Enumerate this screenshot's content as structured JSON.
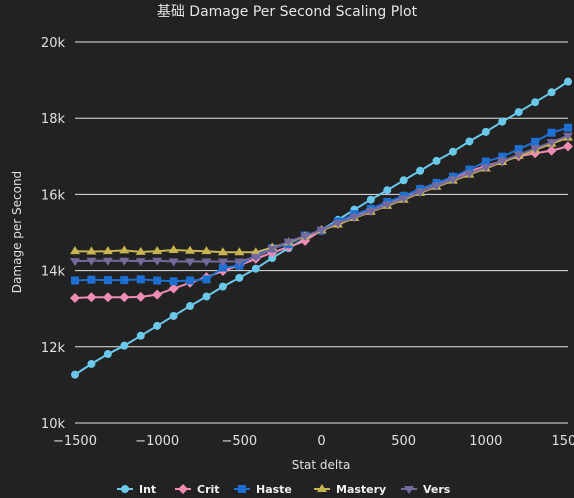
{
  "chart_data": {
    "type": "line",
    "title": "基础 Damage Per Second Scaling Plot",
    "xlabel": "Stat delta",
    "ylabel": "Damage per Second",
    "xlim": [
      -1500,
      1500
    ],
    "ylim": [
      10000,
      20000
    ],
    "x_ticks": [
      -1500,
      -1000,
      -500,
      0,
      500,
      1000,
      1500
    ],
    "x_tick_labels": [
      "−1500",
      "−1000",
      "−500",
      "0",
      "500",
      "1000",
      "1500"
    ],
    "y_ticks": [
      10000,
      12000,
      14000,
      16000,
      18000,
      20000
    ],
    "y_tick_labels": [
      "10k",
      "12k",
      "14k",
      "16k",
      "18k",
      "20k"
    ],
    "grid": true,
    "legend_position": "bottom",
    "x": [
      -1500,
      -1400,
      -1300,
      -1200,
      -1100,
      -1000,
      -900,
      -800,
      -700,
      -600,
      -500,
      -400,
      -300,
      -200,
      -100,
      0,
      100,
      200,
      300,
      400,
      500,
      600,
      700,
      800,
      900,
      1000,
      1100,
      1200,
      1300,
      1400,
      1500
    ],
    "series": [
      {
        "name": "Int",
        "color": "#6ac8ea",
        "marker": "circle",
        "values": [
          11270,
          11550,
          11810,
          12030,
          12290,
          12550,
          12810,
          13070,
          13320,
          13580,
          13810,
          14050,
          14330,
          14590,
          14840,
          15060,
          15330,
          15600,
          15860,
          16110,
          16370,
          16620,
          16880,
          17120,
          17390,
          17640,
          17910,
          18160,
          18420,
          18680,
          18960
        ]
      },
      {
        "name": "Crit",
        "color": "#f08cb4",
        "marker": "diamond",
        "values": [
          13280,
          13300,
          13300,
          13300,
          13310,
          13370,
          13530,
          13680,
          13830,
          13990,
          14140,
          14310,
          14470,
          14620,
          14780,
          15060,
          15230,
          15430,
          15600,
          15780,
          15950,
          16130,
          16280,
          16450,
          16600,
          16750,
          16870,
          17000,
          17080,
          17150,
          17260
        ]
      },
      {
        "name": "Haste",
        "color": "#1e6fd2",
        "marker": "square",
        "values": [
          13740,
          13760,
          13750,
          13750,
          13770,
          13740,
          13720,
          13740,
          13770,
          14080,
          14130,
          14420,
          14590,
          14690,
          14920,
          15050,
          15290,
          15480,
          15620,
          15800,
          15960,
          16140,
          16300,
          16460,
          16650,
          16860,
          16990,
          17190,
          17380,
          17620,
          17750
        ]
      },
      {
        "name": "Mastery",
        "color": "#c8b452",
        "marker": "triangle",
        "values": [
          14510,
          14500,
          14510,
          14530,
          14490,
          14510,
          14540,
          14520,
          14510,
          14480,
          14480,
          14480,
          14610,
          14740,
          14900,
          15060,
          15210,
          15380,
          15540,
          15700,
          15860,
          16040,
          16200,
          16360,
          16520,
          16680,
          16850,
          17010,
          17170,
          17330,
          17490
        ]
      },
      {
        "name": "Vers",
        "color": "#76699e",
        "marker": "triangle-down",
        "values": [
          14250,
          14260,
          14260,
          14260,
          14250,
          14260,
          14240,
          14240,
          14240,
          14240,
          14240,
          14360,
          14570,
          14760,
          14910,
          15070,
          15250,
          15400,
          15560,
          15730,
          15890,
          16060,
          16220,
          16390,
          16550,
          16710,
          16880,
          17040,
          17210,
          17370,
          17540
        ]
      }
    ]
  }
}
